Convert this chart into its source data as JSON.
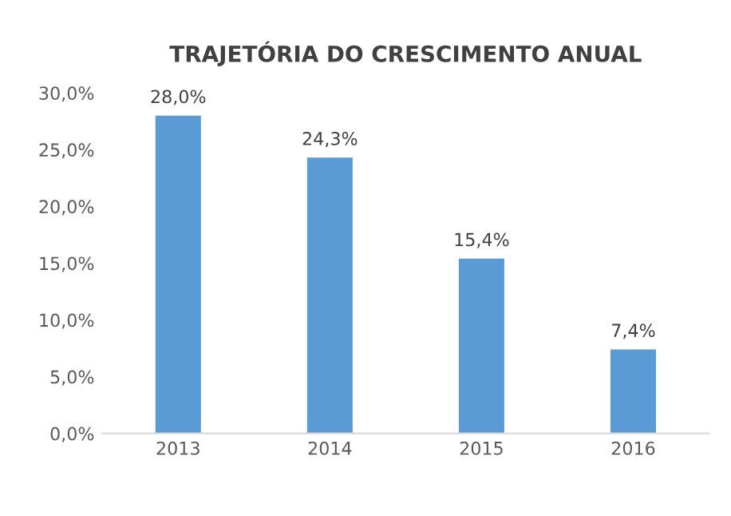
{
  "chart_data": {
    "type": "bar",
    "title": "TRAJETÓRIA DO CRESCIMENTO ANUAL",
    "categories": [
      "2013",
      "2014",
      "2015",
      "2016"
    ],
    "values": [
      28.0,
      24.3,
      15.4,
      7.4
    ],
    "value_labels": [
      "28,0%",
      "24,3%",
      "15,4%",
      "7,4%"
    ],
    "color": "#5b9bd5",
    "ylim": [
      0,
      30
    ],
    "yticks": [
      {
        "value": 0,
        "label": "0,0%"
      },
      {
        "value": 5,
        "label": "5,0%"
      },
      {
        "value": 10,
        "label": "10,0%"
      },
      {
        "value": 15,
        "label": "15,0%"
      },
      {
        "value": 20,
        "label": "20,0%"
      },
      {
        "value": 25,
        "label": "25,0%"
      },
      {
        "value": 30,
        "label": "30,0%"
      }
    ],
    "grid": false,
    "legend": false
  }
}
